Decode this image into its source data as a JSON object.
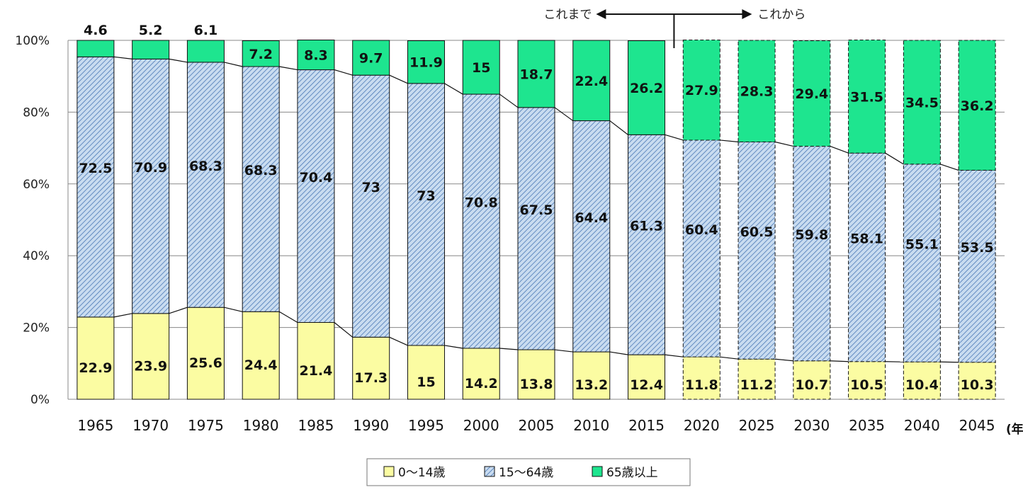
{
  "chart_data": {
    "type": "bar",
    "stacked": true,
    "percent": true,
    "categories": [
      "1965",
      "1970",
      "1975",
      "1980",
      "1985",
      "1990",
      "1995",
      "2000",
      "2005",
      "2010",
      "2015",
      "2020",
      "2025",
      "2030",
      "2035",
      "2040",
      "2045"
    ],
    "projected_from_index": 11,
    "series": [
      {
        "name": "0〜14歳",
        "color": "#fbfca2",
        "values": [
          22.9,
          23.9,
          25.6,
          24.4,
          21.4,
          17.3,
          15.0,
          14.2,
          13.8,
          13.2,
          12.4,
          11.8,
          11.2,
          10.7,
          10.5,
          10.4,
          10.3
        ]
      },
      {
        "name": "15〜64歳",
        "color": "#c9dcf0",
        "pattern": "hatch",
        "values": [
          72.5,
          70.9,
          68.3,
          68.3,
          70.4,
          73.0,
          73.0,
          70.8,
          67.5,
          64.4,
          61.3,
          60.4,
          60.5,
          59.8,
          58.1,
          55.1,
          53.5
        ]
      },
      {
        "name": "65歳以上",
        "color": "#1ee58f",
        "values": [
          4.6,
          5.2,
          6.1,
          7.2,
          8.3,
          9.7,
          11.9,
          15.0,
          18.7,
          22.4,
          26.2,
          27.9,
          28.3,
          29.4,
          31.5,
          34.5,
          36.2
        ]
      }
    ],
    "y_ticks": [
      "0%",
      "20%",
      "40%",
      "60%",
      "80%",
      "100%"
    ],
    "ylim": [
      0,
      100
    ],
    "x_unit": "(年)",
    "grid": true,
    "legend_position": "bottom",
    "annotations": {
      "past": "これまで",
      "future": "これから"
    }
  }
}
